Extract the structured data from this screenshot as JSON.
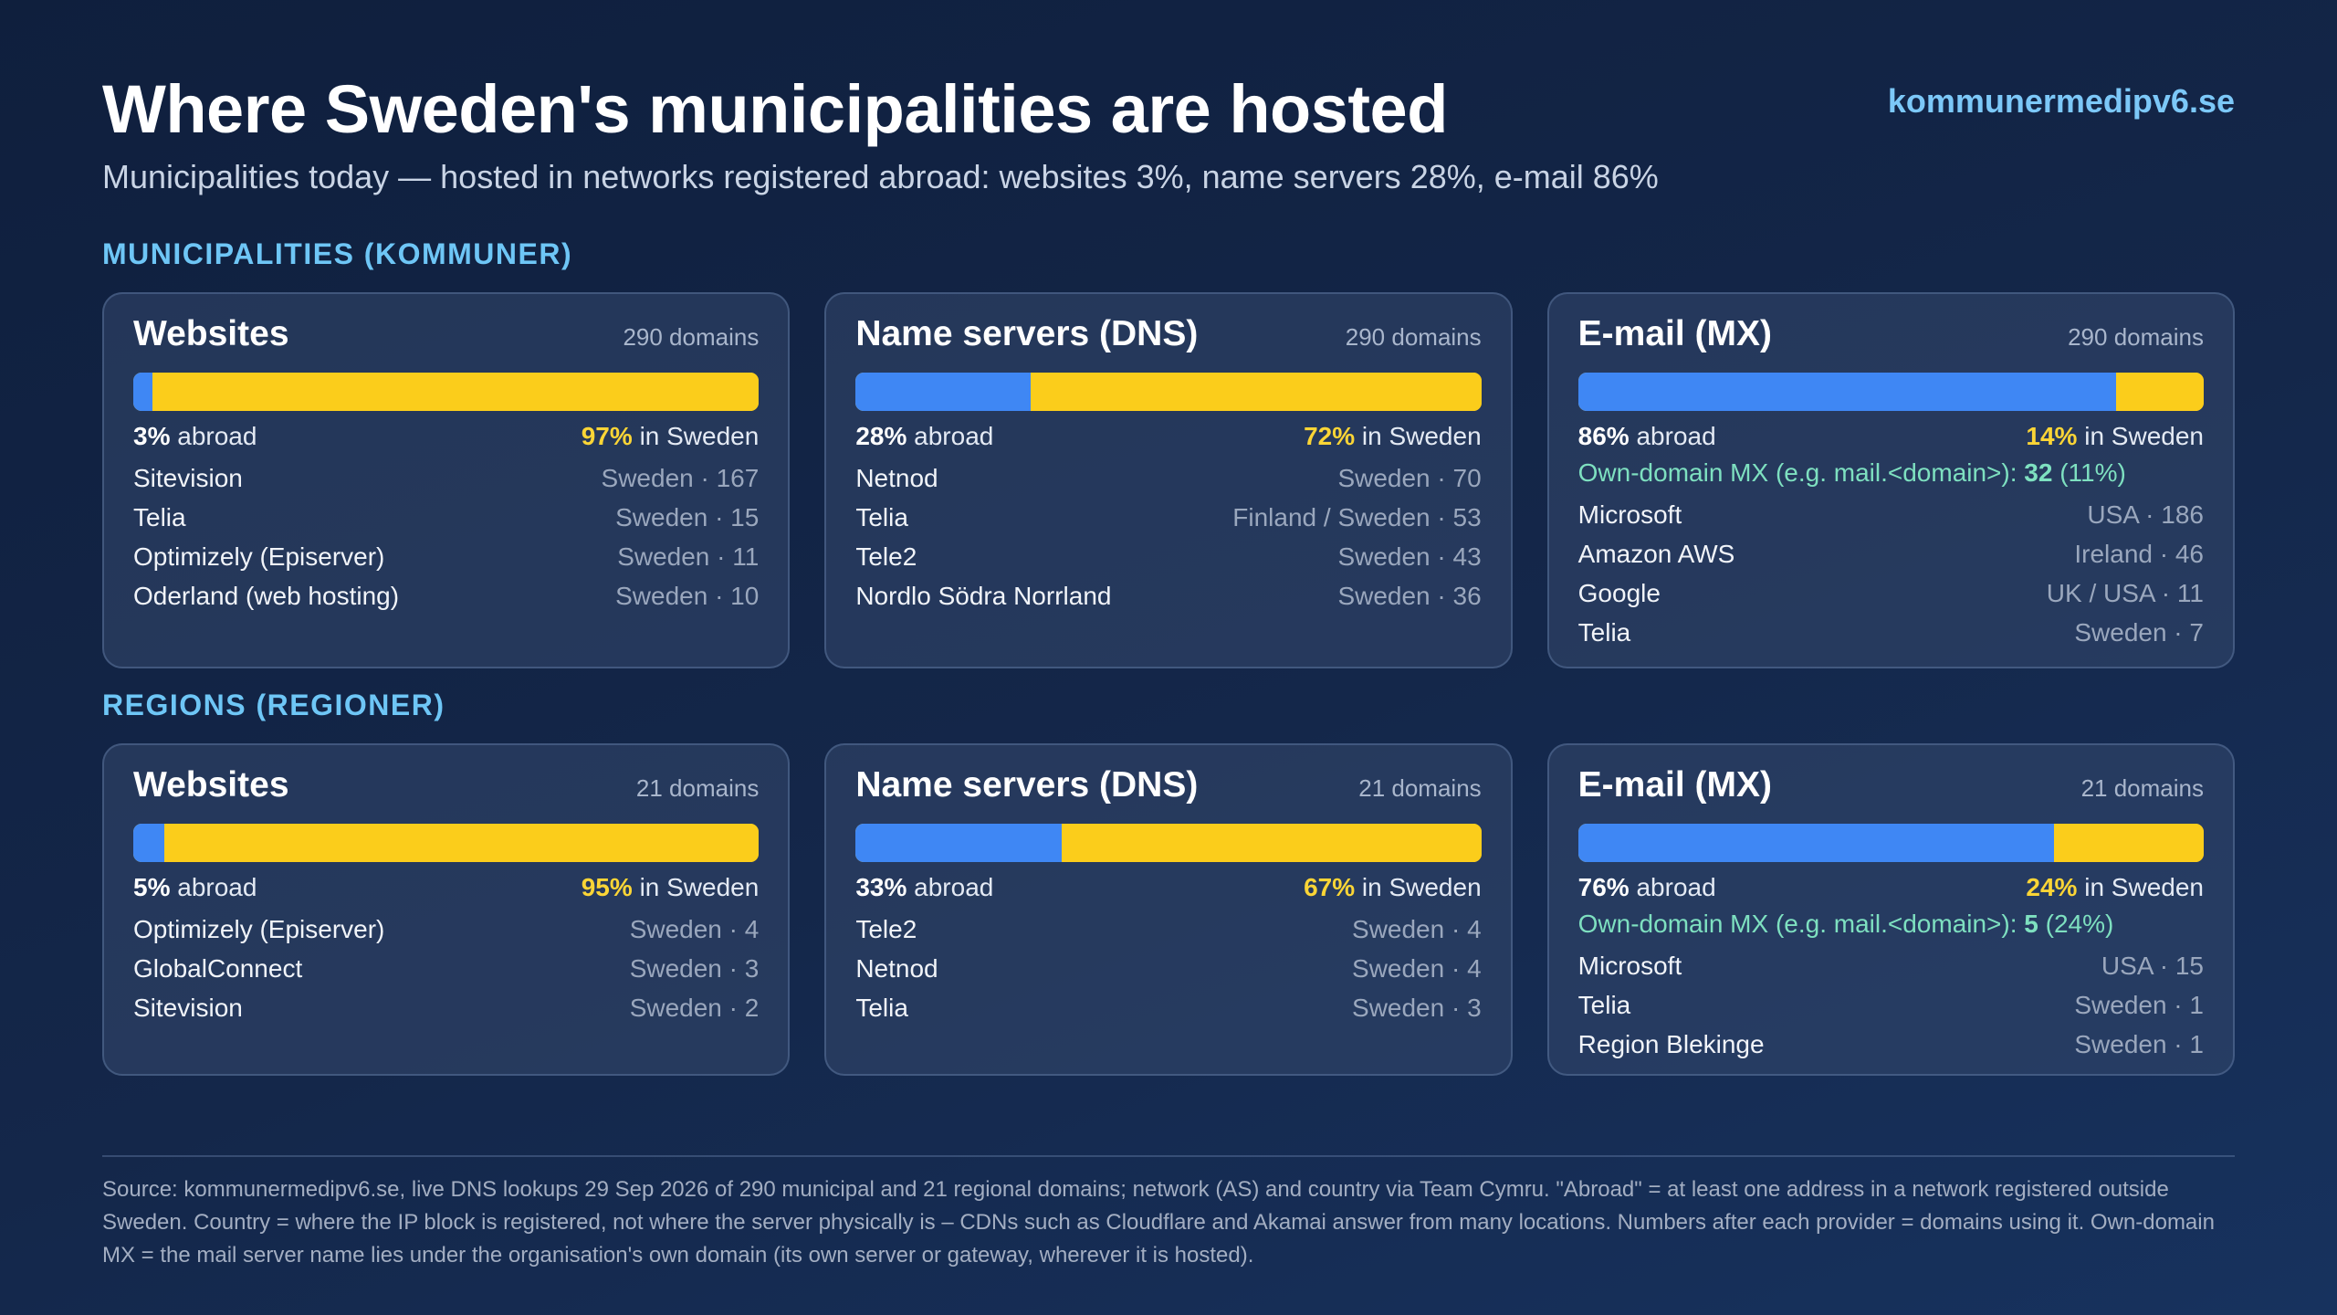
{
  "header": {
    "title": "Where Sweden's municipalities are hosted",
    "subtitle": "Municipalities today — hosted in networks registered abroad: websites 3%, name servers 28%, e-mail 86%",
    "site": "kommunermedipv6.se"
  },
  "colors": {
    "abroad": "#3f87f4",
    "sweden": "#fbcd1b",
    "own_domain": "#7ee0c0",
    "accent": "#6ec6f6"
  },
  "sections": [
    {
      "label": "MUNICIPALITIES (KOMMUNER)",
      "cards": [
        {
          "title": "Websites",
          "count": "290 domains",
          "abroad_pct": "3%",
          "abroad_word": "abroad",
          "sweden_pct": "97%",
          "sweden_word": "in Sweden",
          "own_label": "",
          "own_value": "",
          "own_pct": "",
          "providers": [
            {
              "name": "Sitevision",
              "meta": "Sweden · 167"
            },
            {
              "name": "Telia",
              "meta": "Sweden · 15"
            },
            {
              "name": "Optimizely (Episerver)",
              "meta": "Sweden · 11"
            },
            {
              "name": "Oderland (web hosting)",
              "meta": "Sweden · 10"
            }
          ]
        },
        {
          "title": "Name servers (DNS)",
          "count": "290 domains",
          "abroad_pct": "28%",
          "abroad_word": "abroad",
          "sweden_pct": "72%",
          "sweden_word": "in Sweden",
          "own_label": "",
          "own_value": "",
          "own_pct": "",
          "providers": [
            {
              "name": "Netnod",
              "meta": "Sweden · 70"
            },
            {
              "name": "Telia",
              "meta": "Finland / Sweden · 53"
            },
            {
              "name": "Tele2",
              "meta": "Sweden · 43"
            },
            {
              "name": "Nordlo Södra Norrland",
              "meta": "Sweden · 36"
            }
          ]
        },
        {
          "title": "E-mail (MX)",
          "count": "290 domains",
          "abroad_pct": "86%",
          "abroad_word": "abroad",
          "sweden_pct": "14%",
          "sweden_word": "in Sweden",
          "own_label": "Own-domain MX (e.g. mail.<domain>):",
          "own_value": "32",
          "own_pct": "(11%)",
          "providers": [
            {
              "name": "Microsoft",
              "meta": "USA · 186"
            },
            {
              "name": "Amazon AWS",
              "meta": "Ireland · 46"
            },
            {
              "name": "Google",
              "meta": "UK / USA · 11"
            },
            {
              "name": "Telia",
              "meta": "Sweden · 7"
            }
          ]
        }
      ]
    },
    {
      "label": "REGIONS (REGIONER)",
      "cards": [
        {
          "title": "Websites",
          "count": "21 domains",
          "abroad_pct": "5%",
          "abroad_word": "abroad",
          "sweden_pct": "95%",
          "sweden_word": "in Sweden",
          "own_label": "",
          "own_value": "",
          "own_pct": "",
          "providers": [
            {
              "name": "Optimizely (Episerver)",
              "meta": "Sweden · 4"
            },
            {
              "name": "GlobalConnect",
              "meta": "Sweden · 3"
            },
            {
              "name": "Sitevision",
              "meta": "Sweden · 2"
            }
          ]
        },
        {
          "title": "Name servers (DNS)",
          "count": "21 domains",
          "abroad_pct": "33%",
          "abroad_word": "abroad",
          "sweden_pct": "67%",
          "sweden_word": "in Sweden",
          "own_label": "",
          "own_value": "",
          "own_pct": "",
          "providers": [
            {
              "name": "Tele2",
              "meta": "Sweden · 4"
            },
            {
              "name": "Netnod",
              "meta": "Sweden · 4"
            },
            {
              "name": "Telia",
              "meta": "Sweden · 3"
            }
          ]
        },
        {
          "title": "E-mail (MX)",
          "count": "21 domains",
          "abroad_pct": "76%",
          "abroad_word": "abroad",
          "sweden_pct": "24%",
          "sweden_word": "in Sweden",
          "own_label": "Own-domain MX (e.g. mail.<domain>):",
          "own_value": "5",
          "own_pct": "(24%)",
          "providers": [
            {
              "name": "Microsoft",
              "meta": "USA · 15"
            },
            {
              "name": "Telia",
              "meta": "Sweden · 1"
            },
            {
              "name": "Region Blekinge",
              "meta": "Sweden · 1"
            }
          ]
        }
      ]
    }
  ],
  "footer": {
    "source": "Source: kommunermedipv6.se, live DNS lookups 29 Sep 2026 of 290 municipal and 21 regional domains; network (AS) and country via Team Cymru. \"Abroad\" = at least one address in a network registered outside Sweden. Country = where the IP block is registered, not where the server physically is – CDNs such as Cloudflare and Akamai answer from many locations. Numbers after each provider = domains using it. Own-domain MX = the mail server name lies under the organisation's own domain (its own server or gateway, wherever it is hosted)."
  },
  "chart_data": [
    {
      "type": "bar",
      "title": "Websites",
      "group": "MUNICIPALITIES (KOMMUNER)",
      "categories": [
        "abroad",
        "in Sweden"
      ],
      "values": [
        3,
        97
      ]
    },
    {
      "type": "bar",
      "title": "Name servers (DNS)",
      "group": "MUNICIPALITIES (KOMMUNER)",
      "categories": [
        "abroad",
        "in Sweden"
      ],
      "values": [
        28,
        72
      ]
    },
    {
      "type": "bar",
      "title": "E-mail (MX)",
      "group": "MUNICIPALITIES (KOMMUNER)",
      "categories": [
        "abroad",
        "in Sweden"
      ],
      "values": [
        86,
        14
      ]
    },
    {
      "type": "bar",
      "title": "Websites",
      "group": "REGIONS (REGIONER)",
      "categories": [
        "abroad",
        "in Sweden"
      ],
      "values": [
        5,
        95
      ]
    },
    {
      "type": "bar",
      "title": "Name servers (DNS)",
      "group": "REGIONS (REGIONER)",
      "categories": [
        "abroad",
        "in Sweden"
      ],
      "values": [
        33,
        67
      ]
    },
    {
      "type": "bar",
      "title": "E-mail (MX)",
      "group": "REGIONS (REGIONER)",
      "categories": [
        "abroad",
        "in Sweden"
      ],
      "values": [
        76,
        24
      ]
    }
  ]
}
